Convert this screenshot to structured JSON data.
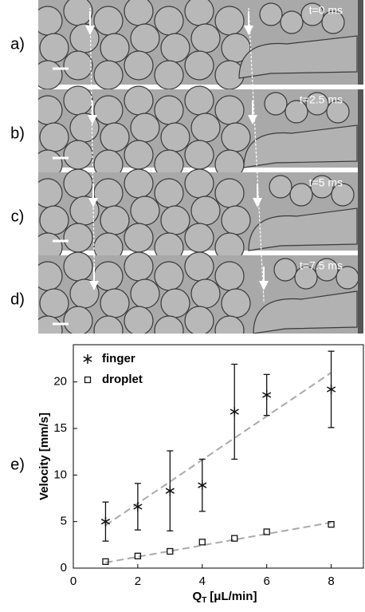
{
  "panels": [
    {
      "label": "a)",
      "time": "t=0 ms"
    },
    {
      "label": "b)",
      "time": "t=2.5 ms"
    },
    {
      "label": "c)",
      "time": "t=5 ms"
    },
    {
      "label": "d)",
      "time": "t=7.5 ms"
    }
  ],
  "chart_data": {
    "type": "scatter",
    "panel_label": "e)",
    "x_label": "Q",
    "x_label_sub": "T",
    "x_label_unit": "[μL/min]",
    "y_label": "Velocity [mm/s]",
    "xlim": [
      0,
      9
    ],
    "xticks": [
      0,
      2,
      4,
      6,
      8
    ],
    "ylim": [
      0,
      24
    ],
    "yticks": [
      0,
      5,
      10,
      15,
      20
    ],
    "legend": "upper left",
    "series": [
      {
        "name": "finger",
        "marker": "star",
        "color": "#111111",
        "x": [
          1,
          2,
          3,
          4,
          5,
          6,
          8
        ],
        "values": [
          5.0,
          6.6,
          8.3,
          8.9,
          16.8,
          18.6,
          19.2
        ],
        "errors": [
          2.1,
          2.5,
          4.3,
          2.8,
          5.1,
          2.2,
          4.1
        ]
      },
      {
        "name": "droplet",
        "marker": "square",
        "color": "#111111",
        "x": [
          1,
          2,
          3,
          4,
          5,
          6,
          8
        ],
        "values": [
          0.7,
          1.3,
          1.8,
          2.8,
          3.2,
          3.9,
          4.7
        ]
      }
    ],
    "fits": [
      {
        "x": [
          1,
          8
        ],
        "values": [
          4.6,
          21.0
        ],
        "color": "#aaaaaa"
      },
      {
        "x": [
          1,
          8
        ],
        "values": [
          0.6,
          4.9
        ],
        "color": "#aaaaaa"
      }
    ]
  }
}
